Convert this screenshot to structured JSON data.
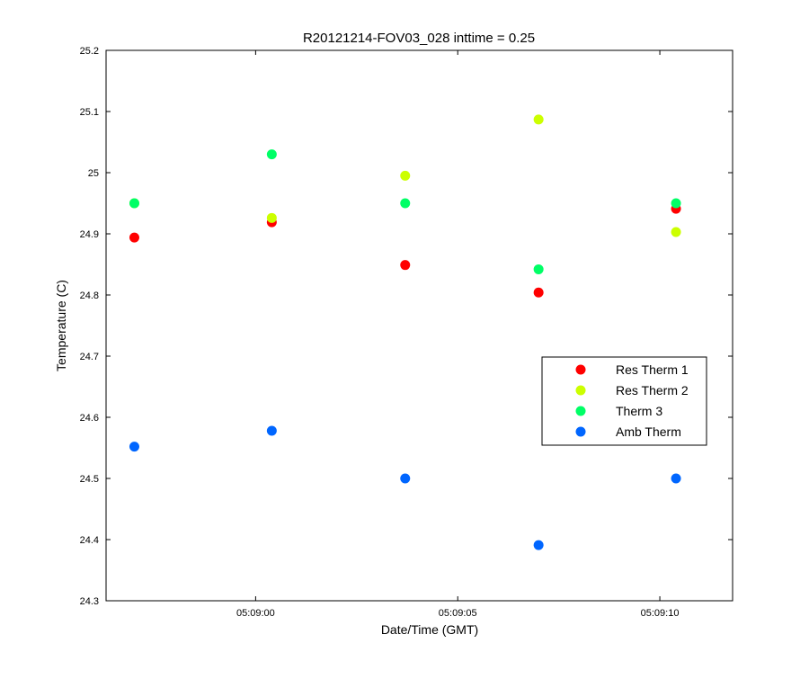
{
  "chart_data": {
    "type": "scatter",
    "title": "R20121214-FOV03_028 inttime = 0.25",
    "xlabel": "Date/Time (GMT)",
    "ylabel": "Temperature (C)",
    "x_unit": "time_hms",
    "xlim": [
      "05:08:56.3",
      "05:09:11.8"
    ],
    "x_ticks": [
      "05:09:00",
      "05:09:05",
      "05:09:10"
    ],
    "ylim": [
      24.3,
      25.2
    ],
    "y_ticks": [
      "24.3",
      "24.4",
      "24.5",
      "24.6",
      "24.7",
      "24.8",
      "24.9",
      "25",
      "25.1",
      "25.2"
    ],
    "grid": false,
    "legend_position": "right",
    "x": [
      "05:08:57.0",
      "05:09:00.4",
      "05:09:03.7",
      "05:09:07.0",
      "05:09:10.4"
    ],
    "series": [
      {
        "name": "Res Therm 1",
        "color": "#ff0000",
        "values": [
          24.894,
          24.919,
          24.849,
          24.804,
          24.941
        ]
      },
      {
        "name": "Res Therm 2",
        "color": "#ccff00",
        "values": [
          24.95,
          24.926,
          24.995,
          25.087,
          24.903
        ]
      },
      {
        "name": "Therm 3",
        "color": "#00ff66",
        "values": [
          24.95,
          25.03,
          24.95,
          24.842,
          24.95
        ]
      },
      {
        "name": "Amb Therm",
        "color": "#0066ff",
        "values": [
          24.552,
          24.578,
          24.5,
          24.391,
          24.5
        ]
      }
    ]
  }
}
